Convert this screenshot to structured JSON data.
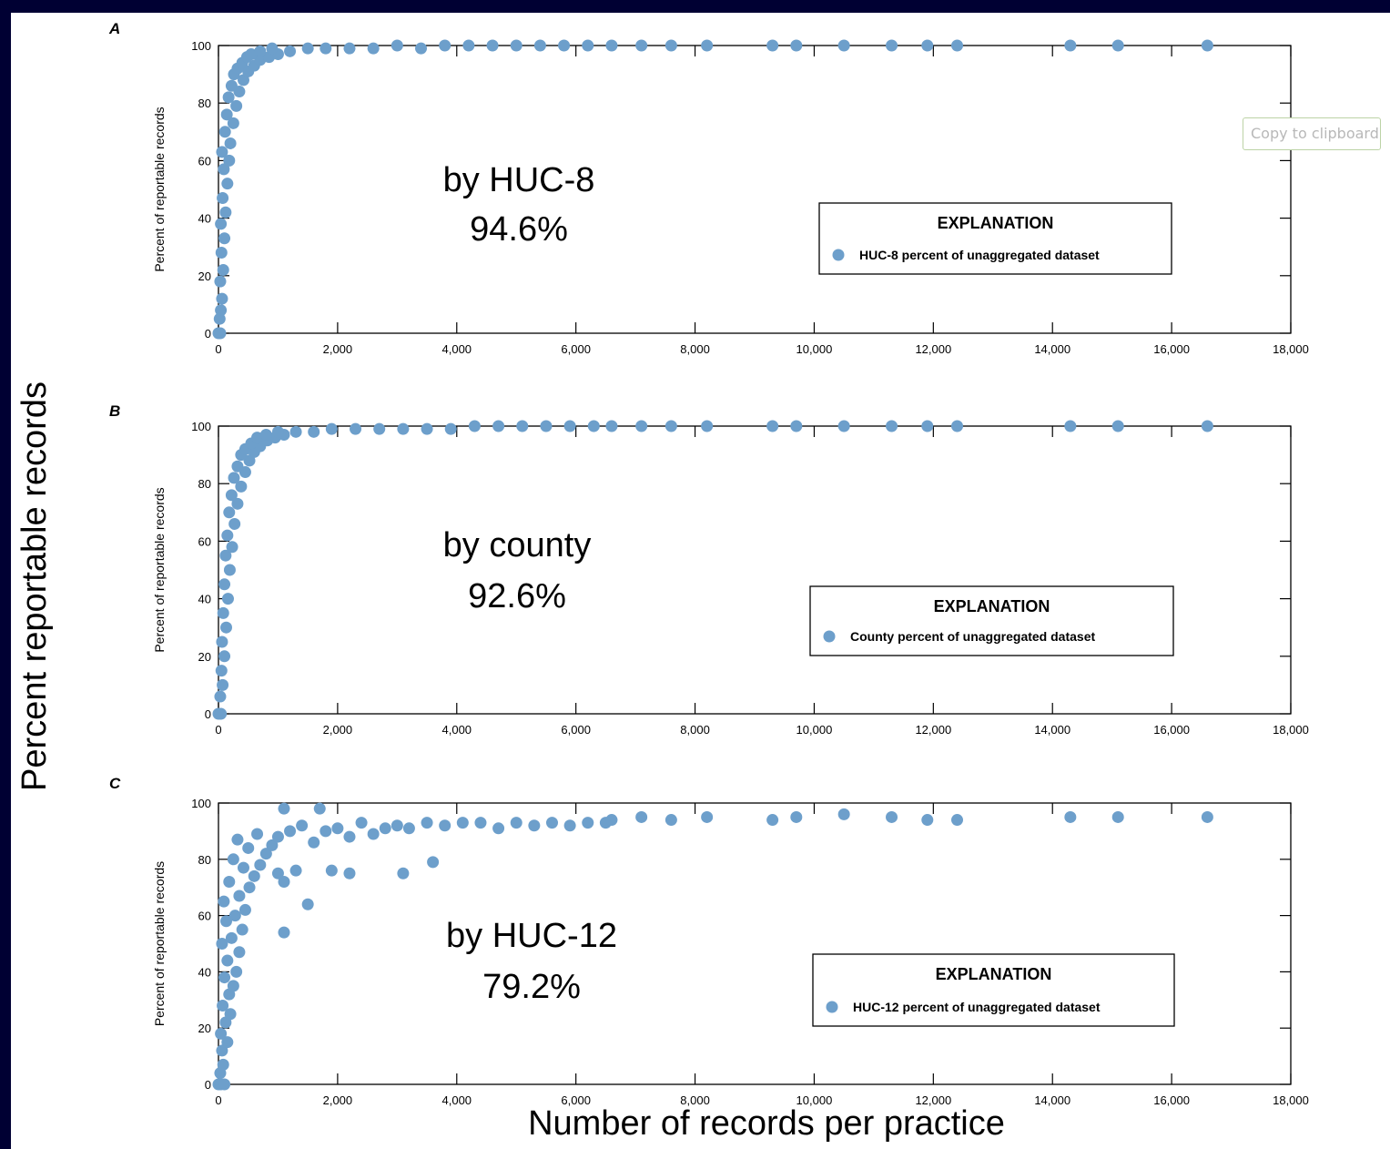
{
  "slide": {
    "ylabel": "Percent reportable records",
    "xlabel": "Number of records per practice"
  },
  "tooltip": {
    "text": "Copy to clipboard"
  },
  "colors": {
    "point": "#6d9fcb",
    "background": "#000033"
  },
  "chart_data": [
    {
      "panel": "A",
      "type": "scatter",
      "ylabel": "Percent of reportable records",
      "xlim": [
        0,
        18000
      ],
      "ylim": [
        0,
        100
      ],
      "xticks": [
        "0",
        "2,000",
        "4,000",
        "6,000",
        "8,000",
        "10,000",
        "12,000",
        "14,000",
        "16,000",
        "18,000"
      ],
      "yticks": [
        "0",
        "20",
        "40",
        "60",
        "80",
        "100"
      ],
      "annotation": [
        "by HUC-8",
        "94.6%"
      ],
      "legend_title": "EXPLANATION",
      "legend_label": "HUC-8 percent of unaggregated dataset",
      "legend_placement": "lower-right",
      "series": [
        {
          "name": "HUC-8 percent of unaggregated dataset",
          "points": [
            [
              0,
              0
            ],
            [
              30,
              0
            ],
            [
              20,
              5
            ],
            [
              40,
              8
            ],
            [
              60,
              12
            ],
            [
              30,
              18
            ],
            [
              80,
              22
            ],
            [
              50,
              28
            ],
            [
              100,
              33
            ],
            [
              40,
              38
            ],
            [
              120,
              42
            ],
            [
              70,
              47
            ],
            [
              150,
              52
            ],
            [
              90,
              57
            ],
            [
              180,
              60
            ],
            [
              60,
              63
            ],
            [
              200,
              66
            ],
            [
              110,
              70
            ],
            [
              250,
              73
            ],
            [
              140,
              76
            ],
            [
              300,
              79
            ],
            [
              170,
              82
            ],
            [
              350,
              84
            ],
            [
              220,
              86
            ],
            [
              420,
              88
            ],
            [
              260,
              90
            ],
            [
              500,
              91
            ],
            [
              320,
              92
            ],
            [
              600,
              93
            ],
            [
              400,
              94
            ],
            [
              700,
              95
            ],
            [
              480,
              96
            ],
            [
              850,
              96
            ],
            [
              550,
              97
            ],
            [
              1000,
              97
            ],
            [
              700,
              98
            ],
            [
              1200,
              98
            ],
            [
              900,
              99
            ],
            [
              1500,
              99
            ],
            [
              1800,
              99
            ],
            [
              2200,
              99
            ],
            [
              2600,
              99
            ],
            [
              3000,
              100
            ],
            [
              3400,
              99
            ],
            [
              3800,
              100
            ],
            [
              4200,
              100
            ],
            [
              4600,
              100
            ],
            [
              5000,
              100
            ],
            [
              5400,
              100
            ],
            [
              5800,
              100
            ],
            [
              6200,
              100
            ],
            [
              6600,
              100
            ],
            [
              7100,
              100
            ],
            [
              7600,
              100
            ],
            [
              8200,
              100
            ],
            [
              9300,
              100
            ],
            [
              9700,
              100
            ],
            [
              10500,
              100
            ],
            [
              11300,
              100
            ],
            [
              11900,
              100
            ],
            [
              12400,
              100
            ],
            [
              14300,
              100
            ],
            [
              15100,
              100
            ],
            [
              16600,
              100
            ]
          ]
        }
      ]
    },
    {
      "panel": "B",
      "type": "scatter",
      "ylabel": "Percent of reportable records",
      "xlim": [
        0,
        18000
      ],
      "ylim": [
        0,
        100
      ],
      "xticks": [
        "0",
        "2,000",
        "4,000",
        "6,000",
        "8,000",
        "10,000",
        "12,000",
        "14,000",
        "16,000",
        "18,000"
      ],
      "yticks": [
        "0",
        "20",
        "40",
        "60",
        "80",
        "100"
      ],
      "annotation": [
        "by county",
        "92.6%"
      ],
      "legend_title": "EXPLANATION",
      "legend_label": "County percent of unaggregated dataset",
      "legend_placement": "lower-right",
      "series": [
        {
          "name": "County percent of unaggregated dataset",
          "points": [
            [
              0,
              0
            ],
            [
              40,
              0
            ],
            [
              30,
              6
            ],
            [
              70,
              10
            ],
            [
              50,
              15
            ],
            [
              100,
              20
            ],
            [
              60,
              25
            ],
            [
              130,
              30
            ],
            [
              80,
              35
            ],
            [
              160,
              40
            ],
            [
              100,
              45
            ],
            [
              190,
              50
            ],
            [
              120,
              55
            ],
            [
              230,
              58
            ],
            [
              150,
              62
            ],
            [
              270,
              66
            ],
            [
              180,
              70
            ],
            [
              320,
              73
            ],
            [
              220,
              76
            ],
            [
              380,
              79
            ],
            [
              260,
              82
            ],
            [
              450,
              84
            ],
            [
              320,
              86
            ],
            [
              520,
              88
            ],
            [
              380,
              90
            ],
            [
              600,
              91
            ],
            [
              450,
              92
            ],
            [
              700,
              93
            ],
            [
              550,
              94
            ],
            [
              820,
              95
            ],
            [
              650,
              96
            ],
            [
              950,
              96
            ],
            [
              800,
              97
            ],
            [
              1100,
              97
            ],
            [
              1000,
              98
            ],
            [
              1300,
              98
            ],
            [
              1600,
              98
            ],
            [
              1900,
              99
            ],
            [
              2300,
              99
            ],
            [
              2700,
              99
            ],
            [
              3100,
              99
            ],
            [
              3500,
              99
            ],
            [
              3900,
              99
            ],
            [
              4300,
              100
            ],
            [
              4700,
              100
            ],
            [
              5100,
              100
            ],
            [
              5500,
              100
            ],
            [
              5900,
              100
            ],
            [
              6300,
              100
            ],
            [
              6600,
              100
            ],
            [
              7100,
              100
            ],
            [
              7600,
              100
            ],
            [
              8200,
              100
            ],
            [
              9300,
              100
            ],
            [
              9700,
              100
            ],
            [
              10500,
              100
            ],
            [
              11300,
              100
            ],
            [
              11900,
              100
            ],
            [
              12400,
              100
            ],
            [
              14300,
              100
            ],
            [
              15100,
              100
            ],
            [
              16600,
              100
            ]
          ]
        }
      ]
    },
    {
      "panel": "C",
      "type": "scatter",
      "ylabel": "Percent of reportable records",
      "xlim": [
        0,
        18000
      ],
      "ylim": [
        0,
        100
      ],
      "xticks": [
        "0",
        "2,000",
        "4,000",
        "6,000",
        "8,000",
        "10,000",
        "12,000",
        "14,000",
        "16,000",
        "18,000"
      ],
      "yticks": [
        "0",
        "20",
        "40",
        "60",
        "80",
        "100"
      ],
      "annotation": [
        "by HUC-12",
        "79.2%"
      ],
      "legend_title": "EXPLANATION",
      "legend_label": "HUC-12 percent of unaggregated dataset",
      "legend_placement": "lower-right",
      "series": [
        {
          "name": "HUC-12 percent of unaggregated dataset",
          "points": [
            [
              0,
              0
            ],
            [
              40,
              0
            ],
            [
              100,
              0
            ],
            [
              30,
              4
            ],
            [
              80,
              7
            ],
            [
              60,
              12
            ],
            [
              150,
              15
            ],
            [
              40,
              18
            ],
            [
              120,
              22
            ],
            [
              200,
              25
            ],
            [
              70,
              28
            ],
            [
              180,
              32
            ],
            [
              250,
              35
            ],
            [
              100,
              38
            ],
            [
              300,
              40
            ],
            [
              150,
              44
            ],
            [
              350,
              47
            ],
            [
              60,
              50
            ],
            [
              220,
              52
            ],
            [
              400,
              55
            ],
            [
              130,
              58
            ],
            [
              280,
              60
            ],
            [
              450,
              62
            ],
            [
              90,
              65
            ],
            [
              350,
              67
            ],
            [
              520,
              70
            ],
            [
              180,
              72
            ],
            [
              600,
              74
            ],
            [
              420,
              77
            ],
            [
              700,
              78
            ],
            [
              250,
              80
            ],
            [
              800,
              82
            ],
            [
              500,
              84
            ],
            [
              900,
              85
            ],
            [
              320,
              87
            ],
            [
              1000,
              88
            ],
            [
              650,
              89
            ],
            [
              1200,
              90
            ],
            [
              1100,
              72
            ],
            [
              1000,
              75
            ],
            [
              1300,
              76
            ],
            [
              1100,
              54
            ],
            [
              1500,
              64
            ],
            [
              1700,
              98
            ],
            [
              1100,
              98
            ],
            [
              1400,
              92
            ],
            [
              1600,
              86
            ],
            [
              1900,
              76
            ],
            [
              2200,
              75
            ],
            [
              3100,
              75
            ],
            [
              3600,
              79
            ],
            [
              1800,
              90
            ],
            [
              2000,
              91
            ],
            [
              2200,
              88
            ],
            [
              2400,
              93
            ],
            [
              2600,
              89
            ],
            [
              2800,
              91
            ],
            [
              3000,
              92
            ],
            [
              3200,
              91
            ],
            [
              3500,
              93
            ],
            [
              3800,
              92
            ],
            [
              4100,
              93
            ],
            [
              4400,
              93
            ],
            [
              4700,
              91
            ],
            [
              5000,
              93
            ],
            [
              5300,
              92
            ],
            [
              5600,
              93
            ],
            [
              5900,
              92
            ],
            [
              6200,
              93
            ],
            [
              6500,
              93
            ],
            [
              6600,
              94
            ],
            [
              7100,
              95
            ],
            [
              7600,
              94
            ],
            [
              8200,
              95
            ],
            [
              9300,
              94
            ],
            [
              9700,
              95
            ],
            [
              10500,
              96
            ],
            [
              11300,
              95
            ],
            [
              11900,
              94
            ],
            [
              12400,
              94
            ],
            [
              14300,
              95
            ],
            [
              15100,
              95
            ],
            [
              16600,
              95
            ]
          ]
        }
      ]
    }
  ]
}
